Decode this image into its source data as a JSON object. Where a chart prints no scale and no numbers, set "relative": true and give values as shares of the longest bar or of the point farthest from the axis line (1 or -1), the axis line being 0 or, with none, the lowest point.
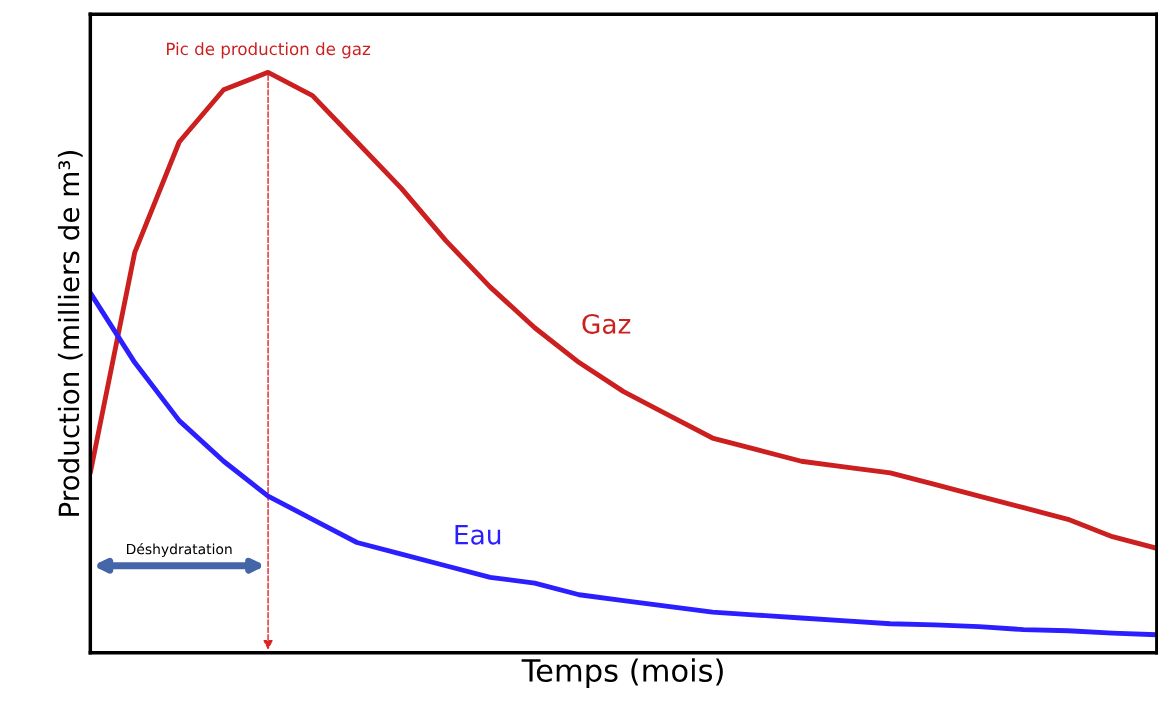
{
  "chart_data": {
    "type": "line",
    "relative": true,
    "xlabel": "Temps (mois)",
    "ylabel": "Production (milliers de m³)",
    "categories": [
      null,
      null,
      null,
      null,
      null,
      null,
      null,
      null,
      null,
      null,
      null,
      null,
      null,
      null,
      null,
      null,
      null,
      null,
      null,
      null,
      null,
      null,
      null,
      null,
      null
    ],
    "series": [
      {
        "name": "Gaz",
        "color": "#cc1f1f",
        "values": [
          0.31,
          0.69,
          0.88,
          0.97,
          1.0,
          0.96,
          0.88,
          0.8,
          0.71,
          0.63,
          0.56,
          0.5,
          0.45,
          0.41,
          0.37,
          0.35,
          0.33,
          0.32,
          0.31,
          0.29,
          0.27,
          0.25,
          0.23,
          0.2,
          0.18
        ]
      },
      {
        "name": "Eau",
        "color": "#2b1fff",
        "values": [
          0.62,
          0.5,
          0.4,
          0.33,
          0.27,
          0.23,
          0.19,
          0.17,
          0.15,
          0.13,
          0.12,
          0.1,
          0.09,
          0.08,
          0.07,
          0.065,
          0.06,
          0.055,
          0.05,
          0.048,
          0.045,
          0.04,
          0.038,
          0.034,
          0.031
        ]
      }
    ],
    "annotations": [
      "Pic de production de gaz",
      "Déshydratation"
    ],
    "legend": false,
    "marker": "none",
    "line_style": "solid"
  }
}
